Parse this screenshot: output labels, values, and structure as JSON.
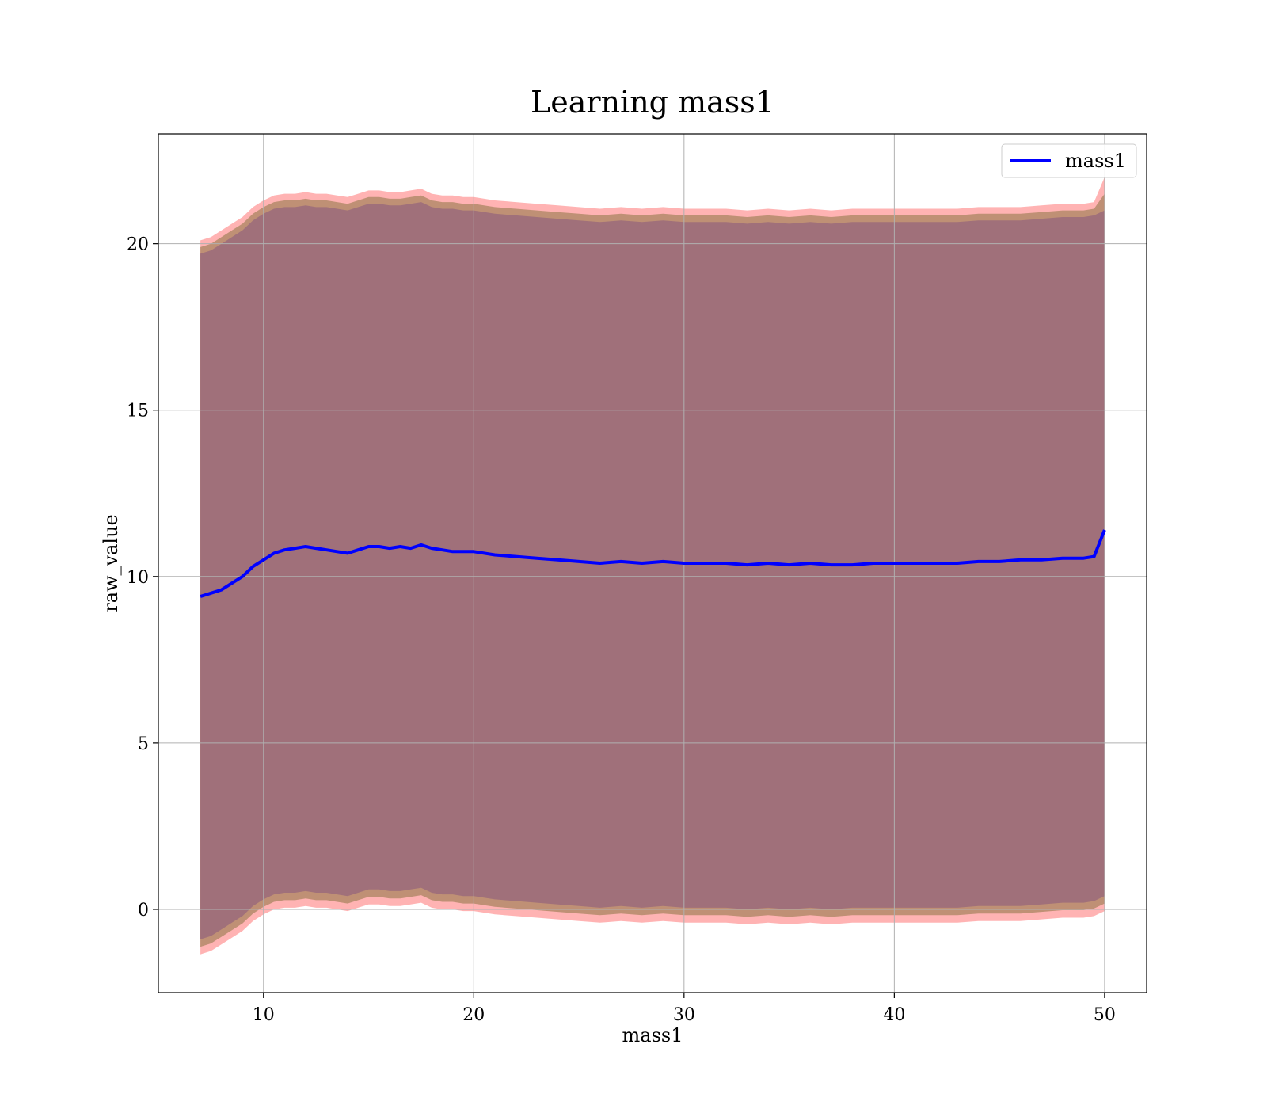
{
  "chart_data": {
    "type": "line",
    "title": "Learning mass1",
    "xlabel": "mass1",
    "ylabel": "raw_value",
    "xlim": [
      5,
      52
    ],
    "ylim": [
      -2.5,
      23.3
    ],
    "xticks": [
      10,
      20,
      30,
      40,
      50
    ],
    "yticks": [
      0,
      5,
      10,
      15,
      20
    ],
    "xtick_labels": [
      "10",
      "20",
      "30",
      "40",
      "50"
    ],
    "ytick_labels": [
      "0",
      "5",
      "10",
      "15",
      "20"
    ],
    "grid": true,
    "legend_position": "top-right",
    "colors": {
      "line": "#0000ff",
      "band_outer": "#ff9999",
      "band_mid": "#b48a6a",
      "band_inner": "#a0707a",
      "grid": "#b0b0b0"
    },
    "series": [
      {
        "name": "mass1",
        "x": [
          7,
          7.5,
          8,
          8.5,
          9,
          9.5,
          10,
          10.5,
          11,
          11.5,
          12,
          12.5,
          13,
          13.5,
          14,
          14.5,
          15,
          15.5,
          16,
          16.5,
          17,
          17.5,
          18,
          18.5,
          19,
          19.5,
          20,
          21,
          22,
          23,
          24,
          25,
          26,
          27,
          28,
          29,
          30,
          31,
          32,
          33,
          34,
          35,
          36,
          37,
          38,
          39,
          40,
          41,
          42,
          43,
          44,
          45,
          46,
          47,
          48,
          49,
          49.5,
          50
        ],
        "y": [
          9.4,
          9.5,
          9.6,
          9.8,
          10.0,
          10.3,
          10.5,
          10.7,
          10.8,
          10.85,
          10.9,
          10.85,
          10.8,
          10.75,
          10.7,
          10.8,
          10.9,
          10.9,
          10.85,
          10.9,
          10.85,
          10.95,
          10.85,
          10.8,
          10.75,
          10.75,
          10.75,
          10.65,
          10.6,
          10.55,
          10.5,
          10.45,
          10.4,
          10.45,
          10.4,
          10.45,
          10.4,
          10.4,
          10.4,
          10.35,
          10.4,
          10.35,
          10.4,
          10.35,
          10.35,
          10.4,
          10.4,
          10.4,
          10.4,
          10.4,
          10.45,
          10.45,
          10.5,
          10.5,
          10.55,
          10.55,
          10.6,
          11.4
        ]
      }
    ],
    "bands": {
      "outer_upper": [
        20.1,
        20.2,
        20.4,
        20.6,
        20.8,
        21.1,
        21.3,
        21.45,
        21.5,
        21.5,
        21.55,
        21.5,
        21.5,
        21.45,
        21.4,
        21.5,
        21.6,
        21.6,
        21.55,
        21.55,
        21.6,
        21.65,
        21.5,
        21.45,
        21.45,
        21.4,
        21.4,
        21.3,
        21.25,
        21.2,
        21.15,
        21.1,
        21.05,
        21.1,
        21.05,
        21.1,
        21.05,
        21.05,
        21.05,
        21.0,
        21.05,
        21.0,
        21.05,
        21.0,
        21.05,
        21.05,
        21.05,
        21.05,
        21.05,
        21.05,
        21.1,
        21.1,
        21.1,
        21.15,
        21.2,
        21.2,
        21.25,
        22.0
      ],
      "inner_upper": [
        19.7,
        19.8,
        20.0,
        20.2,
        20.4,
        20.7,
        20.9,
        21.05,
        21.1,
        21.1,
        21.15,
        21.1,
        21.1,
        21.05,
        21.0,
        21.1,
        21.2,
        21.2,
        21.15,
        21.15,
        21.2,
        21.25,
        21.1,
        21.05,
        21.05,
        21.0,
        21.0,
        20.9,
        20.85,
        20.8,
        20.75,
        20.7,
        20.65,
        20.7,
        20.65,
        20.7,
        20.65,
        20.65,
        20.65,
        20.6,
        20.65,
        20.6,
        20.65,
        20.6,
        20.65,
        20.65,
        20.65,
        20.65,
        20.65,
        20.65,
        20.7,
        20.7,
        20.7,
        20.75,
        20.8,
        20.8,
        20.85,
        21.0
      ],
      "inner_lower": [
        -0.9,
        -0.8,
        -0.6,
        -0.4,
        -0.2,
        0.1,
        0.3,
        0.45,
        0.5,
        0.5,
        0.55,
        0.5,
        0.5,
        0.45,
        0.4,
        0.5,
        0.6,
        0.6,
        0.55,
        0.55,
        0.6,
        0.65,
        0.5,
        0.45,
        0.45,
        0.4,
        0.4,
        0.3,
        0.25,
        0.2,
        0.15,
        0.1,
        0.05,
        0.1,
        0.05,
        0.1,
        0.05,
        0.05,
        0.05,
        0.0,
        0.05,
        0.0,
        0.05,
        0.0,
        0.05,
        0.05,
        0.05,
        0.05,
        0.05,
        0.05,
        0.1,
        0.1,
        0.1,
        0.15,
        0.2,
        0.2,
        0.25,
        0.4
      ],
      "outer_lower": [
        -1.35,
        -1.25,
        -1.05,
        -0.85,
        -0.65,
        -0.35,
        -0.15,
        0.0,
        0.05,
        0.05,
        0.1,
        0.05,
        0.05,
        0.0,
        -0.05,
        0.05,
        0.15,
        0.15,
        0.1,
        0.1,
        0.15,
        0.2,
        0.05,
        0.0,
        0.0,
        -0.05,
        -0.05,
        -0.15,
        -0.2,
        -0.25,
        -0.3,
        -0.35,
        -0.4,
        -0.35,
        -0.4,
        -0.35,
        -0.4,
        -0.4,
        -0.4,
        -0.45,
        -0.4,
        -0.45,
        -0.4,
        -0.45,
        -0.4,
        -0.4,
        -0.4,
        -0.4,
        -0.4,
        -0.4,
        -0.35,
        -0.35,
        -0.35,
        -0.3,
        -0.25,
        -0.25,
        -0.2,
        -0.05
      ]
    }
  }
}
